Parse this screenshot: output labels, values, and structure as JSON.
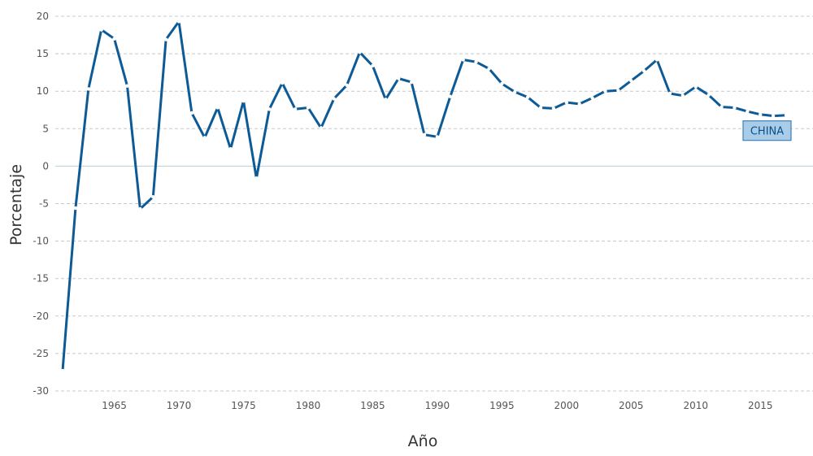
{
  "chart_data": {
    "type": "line",
    "title": "",
    "xlabel": "Año",
    "ylabel": "Porcentaje",
    "xlim": [
      1961,
      2017
    ],
    "ylim": [
      -30,
      20
    ],
    "x_ticks": [
      "1965",
      "1970",
      "1975",
      "1980",
      "1985",
      "1990",
      "1995",
      "2000",
      "2005",
      "2010",
      "2015"
    ],
    "y_ticks": [
      "20",
      "15",
      "10",
      "5",
      "0",
      "-5",
      "-10",
      "-15",
      "-20",
      "-25",
      "-30"
    ],
    "grid": "horizontal dashed",
    "colors": {
      "line": "#0c5a96",
      "label_fill": "#a9cde9",
      "label_border": "#3d7fb8",
      "label_text": "#0c4f86",
      "grid": "#c8c8c8",
      "zero_line": "#b9cfd6"
    },
    "series": [
      {
        "name": "CHINA",
        "x": [
          1961,
          1962,
          1963,
          1964,
          1965,
          1966,
          1967,
          1968,
          1969,
          1970,
          1971,
          1972,
          1973,
          1974,
          1975,
          1976,
          1977,
          1978,
          1979,
          1980,
          1981,
          1982,
          1983,
          1984,
          1985,
          1986,
          1987,
          1988,
          1989,
          1990,
          1991,
          1992,
          1993,
          1994,
          1995,
          1996,
          1997,
          1998,
          1999,
          2000,
          2001,
          2002,
          2003,
          2004,
          2005,
          2006,
          2007,
          2008,
          2009,
          2010,
          2011,
          2012,
          2013,
          2014,
          2015,
          2016,
          2017
        ],
        "values": [
          -27.3,
          -5.6,
          10.3,
          18.2,
          17.0,
          10.7,
          -5.7,
          -4.1,
          16.9,
          19.3,
          7.1,
          3.8,
          7.8,
          2.3,
          8.7,
          -1.6,
          7.6,
          11.1,
          7.6,
          7.8,
          5.1,
          9.0,
          10.8,
          15.2,
          13.4,
          8.9,
          11.7,
          11.2,
          4.2,
          3.9,
          9.3,
          14.2,
          13.9,
          13.0,
          11.0,
          9.9,
          9.2,
          7.8,
          7.7,
          8.5,
          8.3,
          9.1,
          10.0,
          10.1,
          11.4,
          12.7,
          14.2,
          9.7,
          9.4,
          10.6,
          9.5,
          7.9,
          7.8,
          7.3,
          6.9,
          6.7,
          6.8
        ]
      }
    ]
  }
}
